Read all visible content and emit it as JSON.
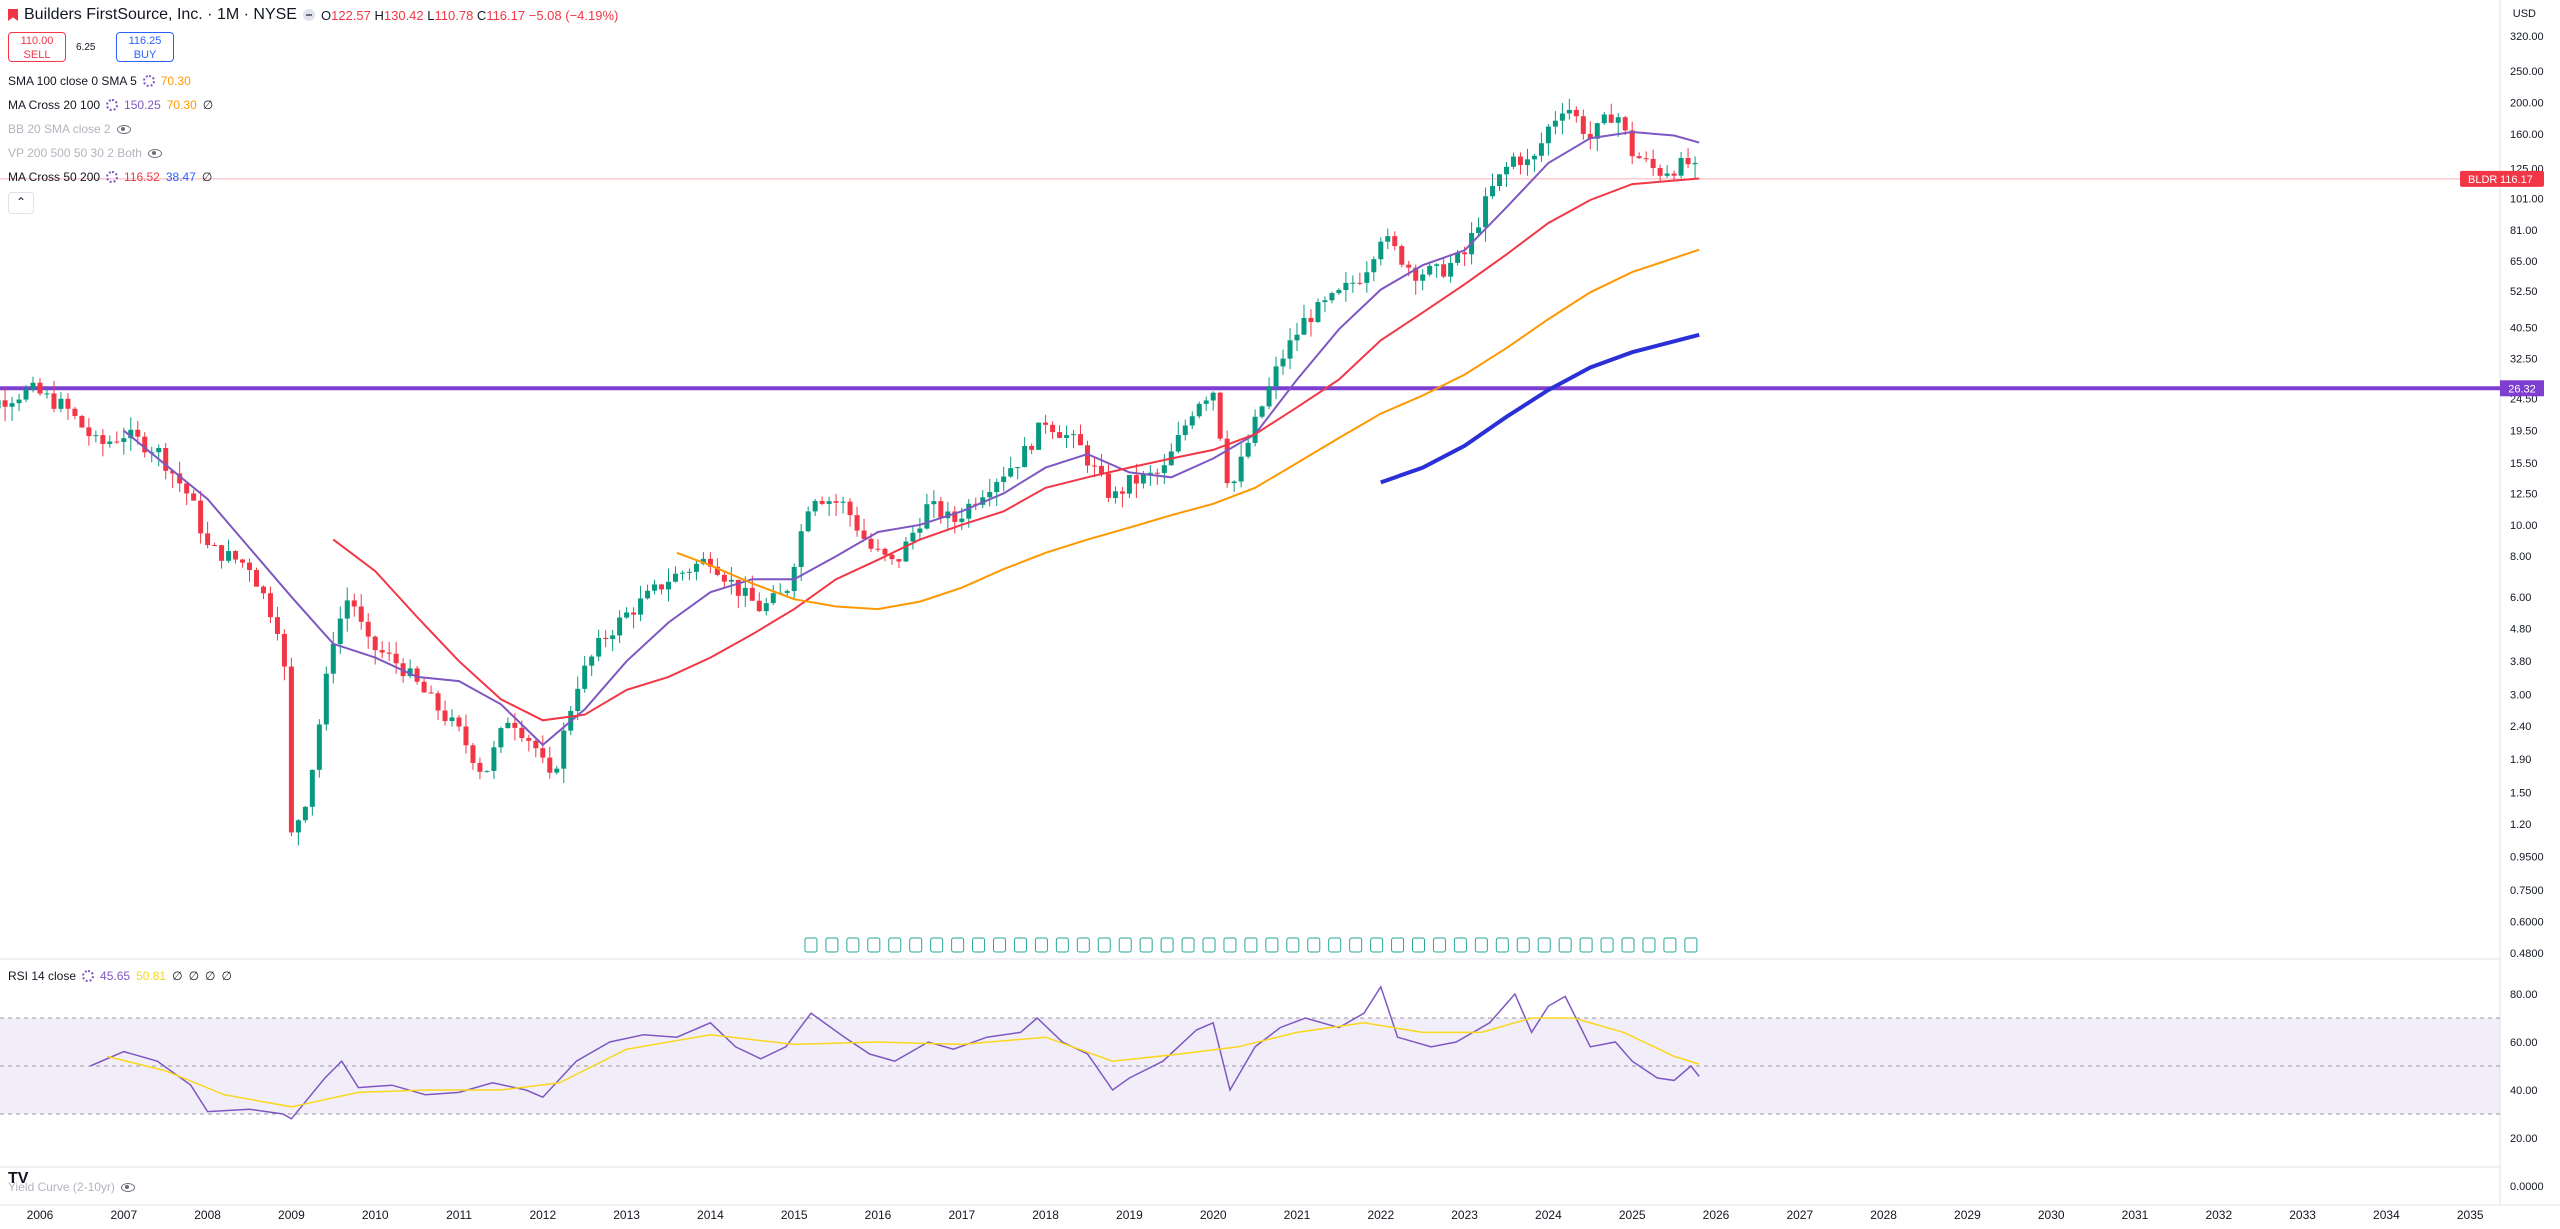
{
  "header": {
    "symbol_title": "Builders FirstSource, Inc. · 1M · NYSE",
    "open_label": "O",
    "open": "122.57",
    "high_label": "H",
    "high": "130.42",
    "low_label": "L",
    "low": "110.78",
    "close_label": "C",
    "close": "116.17",
    "change": "−5.08 (−4.19%)",
    "sell_price": "110.00",
    "sell_label": "SELL",
    "spread": "6.25",
    "buy_price": "116.25",
    "buy_label": "BUY",
    "currency": "USD"
  },
  "indicators": [
    {
      "name": "SMA 100 close 0 SMA 5",
      "values": [
        "70.30"
      ],
      "value_colors": [
        "#ff9800"
      ],
      "visible": true
    },
    {
      "name": "MA Cross 20 100",
      "values": [
        "150.25",
        "70.30",
        "∅"
      ],
      "value_colors": [
        "#7e57c2",
        "#ff9800",
        "#131722"
      ],
      "visible": true
    },
    {
      "name": "BB 20 SMA close 2",
      "values": [],
      "visible": false
    },
    {
      "name": "VP 200 500 50 30 2 Both",
      "values": [],
      "visible": false
    },
    {
      "name": "MA Cross 50 200",
      "values": [
        "116.52",
        "38.47",
        "∅"
      ],
      "value_colors": [
        "#f23645",
        "#2962ff",
        "#131722"
      ],
      "visible": true
    }
  ],
  "rsi_legend": {
    "name": "RSI 14 close",
    "values": [
      "45.65",
      "50.81",
      "∅",
      "∅",
      "∅",
      "∅"
    ],
    "value_colors": [
      "#7e57c2",
      "#f9d71c",
      "#131722",
      "#131722",
      "#131722",
      "#131722"
    ]
  },
  "bottom_pane": {
    "name": "Yield Curve (2-10yr)"
  },
  "price_badges": {
    "symbol": "BLDR",
    "last": "116.17",
    "line_level": "26.32"
  },
  "colors": {
    "up": "#089981",
    "down": "#f23645",
    "ma_fast": "#7e57c2",
    "ma_mid": "#f23645",
    "ma_slow": "#ff9800",
    "ma_long": "#2a2fd6",
    "hline": "#7e3fd0",
    "rsi": "#7e57c2",
    "rsi_ma": "#f9d71c"
  },
  "chart_data": {
    "type": "candlestick",
    "scale": "log",
    "interval": "1M",
    "price_ticks": [
      "320.00",
      "250.00",
      "200.00",
      "160.00",
      "125.00",
      "101.00",
      "81.00",
      "65.00",
      "52.50",
      "40.50",
      "32.50",
      "24.50",
      "19.50",
      "15.50",
      "12.50",
      "10.00",
      "8.00",
      "6.00",
      "4.80",
      "3.80",
      "3.00",
      "2.40",
      "1.90",
      "1.50",
      "1.20",
      "0.9500",
      "0.7500",
      "0.6000",
      "0.4800"
    ],
    "year_labels": [
      "2006",
      "2007",
      "2008",
      "2009",
      "2010",
      "2011",
      "2012",
      "2013",
      "2014",
      "2015",
      "2016",
      "2017",
      "2018",
      "2019",
      "2020",
      "2021",
      "2022",
      "2023",
      "2024",
      "2025",
      "2026",
      "2027",
      "2028",
      "2029",
      "2030",
      "2031",
      "2032",
      "2033",
      "2034",
      "2035"
    ],
    "horizontal_line": 26.32,
    "approx_close_path": [
      [
        2005.0,
        21.5
      ],
      [
        2005.5,
        24
      ],
      [
        2005.9,
        26
      ],
      [
        2006.3,
        23
      ],
      [
        2006.7,
        17.5
      ],
      [
        2007.0,
        19
      ],
      [
        2007.4,
        17
      ],
      [
        2007.8,
        12
      ],
      [
        2008.0,
        8.5
      ],
      [
        2008.5,
        7.5
      ],
      [
        2008.9,
        4.5
      ],
      [
        2009.0,
        1.1
      ],
      [
        2009.2,
        1.5
      ],
      [
        2009.5,
        4.5
      ],
      [
        2009.7,
        6.2
      ],
      [
        2009.9,
        4.3
      ],
      [
        2010.3,
        3.7
      ],
      [
        2010.6,
        3.0
      ],
      [
        2011.0,
        2.3
      ],
      [
        2011.3,
        1.7
      ],
      [
        2011.6,
        2.6
      ],
      [
        2011.9,
        2.1
      ],
      [
        2012.1,
        1.6
      ],
      [
        2012.4,
        3.2
      ],
      [
        2012.7,
        4.4
      ],
      [
        2013.0,
        5.3
      ],
      [
        2013.5,
        6.8
      ],
      [
        2014.0,
        7.9
      ],
      [
        2014.3,
        6.4
      ],
      [
        2014.6,
        5.5
      ],
      [
        2014.9,
        6.2
      ],
      [
        2015.2,
        12.5
      ],
      [
        2015.6,
        11.5
      ],
      [
        2015.9,
        8.5
      ],
      [
        2016.2,
        7.5
      ],
      [
        2016.6,
        11.5
      ],
      [
        2016.9,
        10.2
      ],
      [
        2017.3,
        13.2
      ],
      [
        2017.7,
        16.0
      ],
      [
        2018.0,
        21.0
      ],
      [
        2018.4,
        17.5
      ],
      [
        2018.8,
        12.0
      ],
      [
        2019.0,
        13.5
      ],
      [
        2019.4,
        14.5
      ],
      [
        2019.8,
        24.0
      ],
      [
        2020.0,
        26.0
      ],
      [
        2020.2,
        12.5
      ],
      [
        2020.5,
        20.5
      ],
      [
        2020.8,
        32.0
      ],
      [
        2021.1,
        43.0
      ],
      [
        2021.5,
        51.0
      ],
      [
        2021.8,
        60.0
      ],
      [
        2022.0,
        78.0
      ],
      [
        2022.4,
        60.0
      ],
      [
        2022.7,
        60.0
      ],
      [
        2023.0,
        68.0
      ],
      [
        2023.3,
        105.0
      ],
      [
        2023.6,
        137.0
      ],
      [
        2023.8,
        128.0
      ],
      [
        2024.0,
        167.0
      ],
      [
        2024.2,
        200.0
      ],
      [
        2024.5,
        155.0
      ],
      [
        2024.8,
        190.0
      ],
      [
        2025.0,
        140.0
      ],
      [
        2025.3,
        122.0
      ],
      [
        2025.5,
        126.0
      ],
      [
        2025.7,
        130.0
      ],
      [
        2025.8,
        116.17
      ]
    ],
    "series": [
      {
        "name": "MA Cross 20 100",
        "approx": [
          [
            2007.0,
            19.5
          ],
          [
            2008.0,
            12.0
          ],
          [
            2009.0,
            6.0
          ],
          [
            2009.5,
            4.3
          ],
          [
            2010.0,
            3.9
          ],
          [
            2010.5,
            3.4
          ],
          [
            2011.0,
            3.3
          ],
          [
            2011.5,
            2.8
          ],
          [
            2012.0,
            2.1
          ],
          [
            2012.5,
            2.7
          ],
          [
            2013.0,
            3.8
          ],
          [
            2013.5,
            5.0
          ],
          [
            2014.0,
            6.2
          ],
          [
            2014.5,
            6.8
          ],
          [
            2015.0,
            6.8
          ],
          [
            2015.5,
            8.0
          ],
          [
            2016.0,
            9.5
          ],
          [
            2016.5,
            10.0
          ],
          [
            2017.0,
            11.0
          ],
          [
            2017.5,
            12.5
          ],
          [
            2018.0,
            15.0
          ],
          [
            2018.5,
            16.5
          ],
          [
            2019.0,
            14.5
          ],
          [
            2019.5,
            14.0
          ],
          [
            2020.0,
            16.0
          ],
          [
            2020.5,
            19.0
          ],
          [
            2021.0,
            28.0
          ],
          [
            2021.5,
            40.0
          ],
          [
            2022.0,
            53.0
          ],
          [
            2022.5,
            63.0
          ],
          [
            2023.0,
            70.0
          ],
          [
            2023.5,
            95.0
          ],
          [
            2024.0,
            130.0
          ],
          [
            2024.5,
            155.0
          ],
          [
            2025.0,
            162.0
          ],
          [
            2025.5,
            158.0
          ],
          [
            2025.8,
            150.25
          ]
        ]
      },
      {
        "name": "MA Cross 50 200",
        "approx": [
          [
            2009.5,
            9.0
          ],
          [
            2010.0,
            7.2
          ],
          [
            2010.5,
            5.2
          ],
          [
            2011.0,
            3.8
          ],
          [
            2011.5,
            2.9
          ],
          [
            2012.0,
            2.5
          ],
          [
            2012.5,
            2.6
          ],
          [
            2013.0,
            3.1
          ],
          [
            2013.5,
            3.4
          ],
          [
            2014.0,
            3.9
          ],
          [
            2014.5,
            4.6
          ],
          [
            2015.0,
            5.5
          ],
          [
            2015.5,
            6.8
          ],
          [
            2016.0,
            7.8
          ],
          [
            2016.5,
            9.0
          ],
          [
            2017.0,
            10.0
          ],
          [
            2017.5,
            11.0
          ],
          [
            2018.0,
            13.0
          ],
          [
            2018.5,
            14.0
          ],
          [
            2019.0,
            15.0
          ],
          [
            2019.5,
            16.0
          ],
          [
            2020.0,
            17.0
          ],
          [
            2020.5,
            19.0
          ],
          [
            2021.0,
            23.0
          ],
          [
            2021.5,
            28.0
          ],
          [
            2022.0,
            37.0
          ],
          [
            2022.5,
            45.0
          ],
          [
            2023.0,
            55.0
          ],
          [
            2023.5,
            68.0
          ],
          [
            2024.0,
            85.0
          ],
          [
            2024.5,
            100.0
          ],
          [
            2025.0,
            112.0
          ],
          [
            2025.8,
            116.52
          ]
        ]
      },
      {
        "name": "SMA 100 close 0 SMA 5",
        "approx": [
          [
            2013.6,
            8.2
          ],
          [
            2014.0,
            7.5
          ],
          [
            2014.5,
            6.6
          ],
          [
            2015.0,
            5.9
          ],
          [
            2015.5,
            5.6
          ],
          [
            2016.0,
            5.5
          ],
          [
            2016.5,
            5.8
          ],
          [
            2017.0,
            6.4
          ],
          [
            2017.5,
            7.3
          ],
          [
            2018.0,
            8.2
          ],
          [
            2018.5,
            9.0
          ],
          [
            2019.0,
            9.8
          ],
          [
            2019.5,
            10.7
          ],
          [
            2020.0,
            11.6
          ],
          [
            2020.5,
            13.0
          ],
          [
            2021.0,
            15.5
          ],
          [
            2021.5,
            18.5
          ],
          [
            2022.0,
            22.0
          ],
          [
            2022.5,
            25.0
          ],
          [
            2023.0,
            29.0
          ],
          [
            2023.5,
            35.0
          ],
          [
            2024.0,
            43.0
          ],
          [
            2024.5,
            52.0
          ],
          [
            2025.0,
            60.0
          ],
          [
            2025.8,
            70.3
          ]
        ]
      },
      {
        "name": "MA Cross 50 200 (200)",
        "approx": [
          [
            2022.0,
            13.5
          ],
          [
            2022.5,
            15.0
          ],
          [
            2023.0,
            17.5
          ],
          [
            2023.5,
            21.5
          ],
          [
            2024.0,
            26.0
          ],
          [
            2024.5,
            30.5
          ],
          [
            2025.0,
            34.0
          ],
          [
            2025.8,
            38.47
          ]
        ]
      }
    ],
    "rsi": {
      "ticks": [
        "80.00",
        "60.00",
        "40.00",
        "20.00",
        "0.0000"
      ],
      "upper": 70,
      "middle": 50,
      "lower": 30,
      "values": [
        [
          2006.6,
          50
        ],
        [
          2007.0,
          56
        ],
        [
          2007.4,
          52
        ],
        [
          2007.8,
          42
        ],
        [
          2008.0,
          31
        ],
        [
          2008.5,
          32
        ],
        [
          2008.9,
          30
        ],
        [
          2009.0,
          28
        ],
        [
          2009.4,
          45
        ],
        [
          2009.6,
          52
        ],
        [
          2009.8,
          41
        ],
        [
          2010.2,
          42
        ],
        [
          2010.6,
          38
        ],
        [
          2011.0,
          39
        ],
        [
          2011.4,
          43
        ],
        [
          2011.8,
          40
        ],
        [
          2012.0,
          37
        ],
        [
          2012.4,
          52
        ],
        [
          2012.8,
          60
        ],
        [
          2013.2,
          63
        ],
        [
          2013.6,
          62
        ],
        [
          2014.0,
          68
        ],
        [
          2014.3,
          58
        ],
        [
          2014.6,
          53
        ],
        [
          2014.9,
          58
        ],
        [
          2015.2,
          72
        ],
        [
          2015.6,
          62
        ],
        [
          2015.9,
          55
        ],
        [
          2016.2,
          52
        ],
        [
          2016.6,
          60
        ],
        [
          2016.9,
          57
        ],
        [
          2017.3,
          62
        ],
        [
          2017.7,
          64
        ],
        [
          2017.9,
          70
        ],
        [
          2018.2,
          60
        ],
        [
          2018.5,
          55
        ],
        [
          2018.8,
          40
        ],
        [
          2019.0,
          45
        ],
        [
          2019.4,
          52
        ],
        [
          2019.8,
          65
        ],
        [
          2020.0,
          68
        ],
        [
          2020.2,
          40
        ],
        [
          2020.5,
          58
        ],
        [
          2020.8,
          66
        ],
        [
          2021.1,
          70
        ],
        [
          2021.5,
          66
        ],
        [
          2021.8,
          72
        ],
        [
          2022.0,
          83
        ],
        [
          2022.2,
          62
        ],
        [
          2022.6,
          58
        ],
        [
          2022.9,
          60
        ],
        [
          2023.3,
          68
        ],
        [
          2023.6,
          80
        ],
        [
          2023.8,
          64
        ],
        [
          2024.0,
          75
        ],
        [
          2024.2,
          79
        ],
        [
          2024.5,
          58
        ],
        [
          2024.8,
          60
        ],
        [
          2025.0,
          52
        ],
        [
          2025.3,
          45
        ],
        [
          2025.5,
          44
        ],
        [
          2025.7,
          50
        ],
        [
          2025.8,
          45.65
        ]
      ],
      "ma_values": [
        [
          2006.8,
          54
        ],
        [
          2007.5,
          48
        ],
        [
          2008.2,
          38
        ],
        [
          2009.0,
          33
        ],
        [
          2009.8,
          39
        ],
        [
          2010.6,
          40
        ],
        [
          2011.5,
          40
        ],
        [
          2012.2,
          43
        ],
        [
          2013.0,
          57
        ],
        [
          2014.0,
          63
        ],
        [
          2015.0,
          59
        ],
        [
          2016.0,
          60
        ],
        [
          2017.0,
          59
        ],
        [
          2018.0,
          62
        ],
        [
          2018.8,
          52
        ],
        [
          2019.6,
          55
        ],
        [
          2020.3,
          58
        ],
        [
          2021.0,
          64
        ],
        [
          2021.8,
          68
        ],
        [
          2022.5,
          64
        ],
        [
          2023.2,
          64
        ],
        [
          2023.8,
          70
        ],
        [
          2024.3,
          70
        ],
        [
          2024.9,
          64
        ],
        [
          2025.5,
          54
        ],
        [
          2025.8,
          50.81
        ]
      ]
    }
  }
}
